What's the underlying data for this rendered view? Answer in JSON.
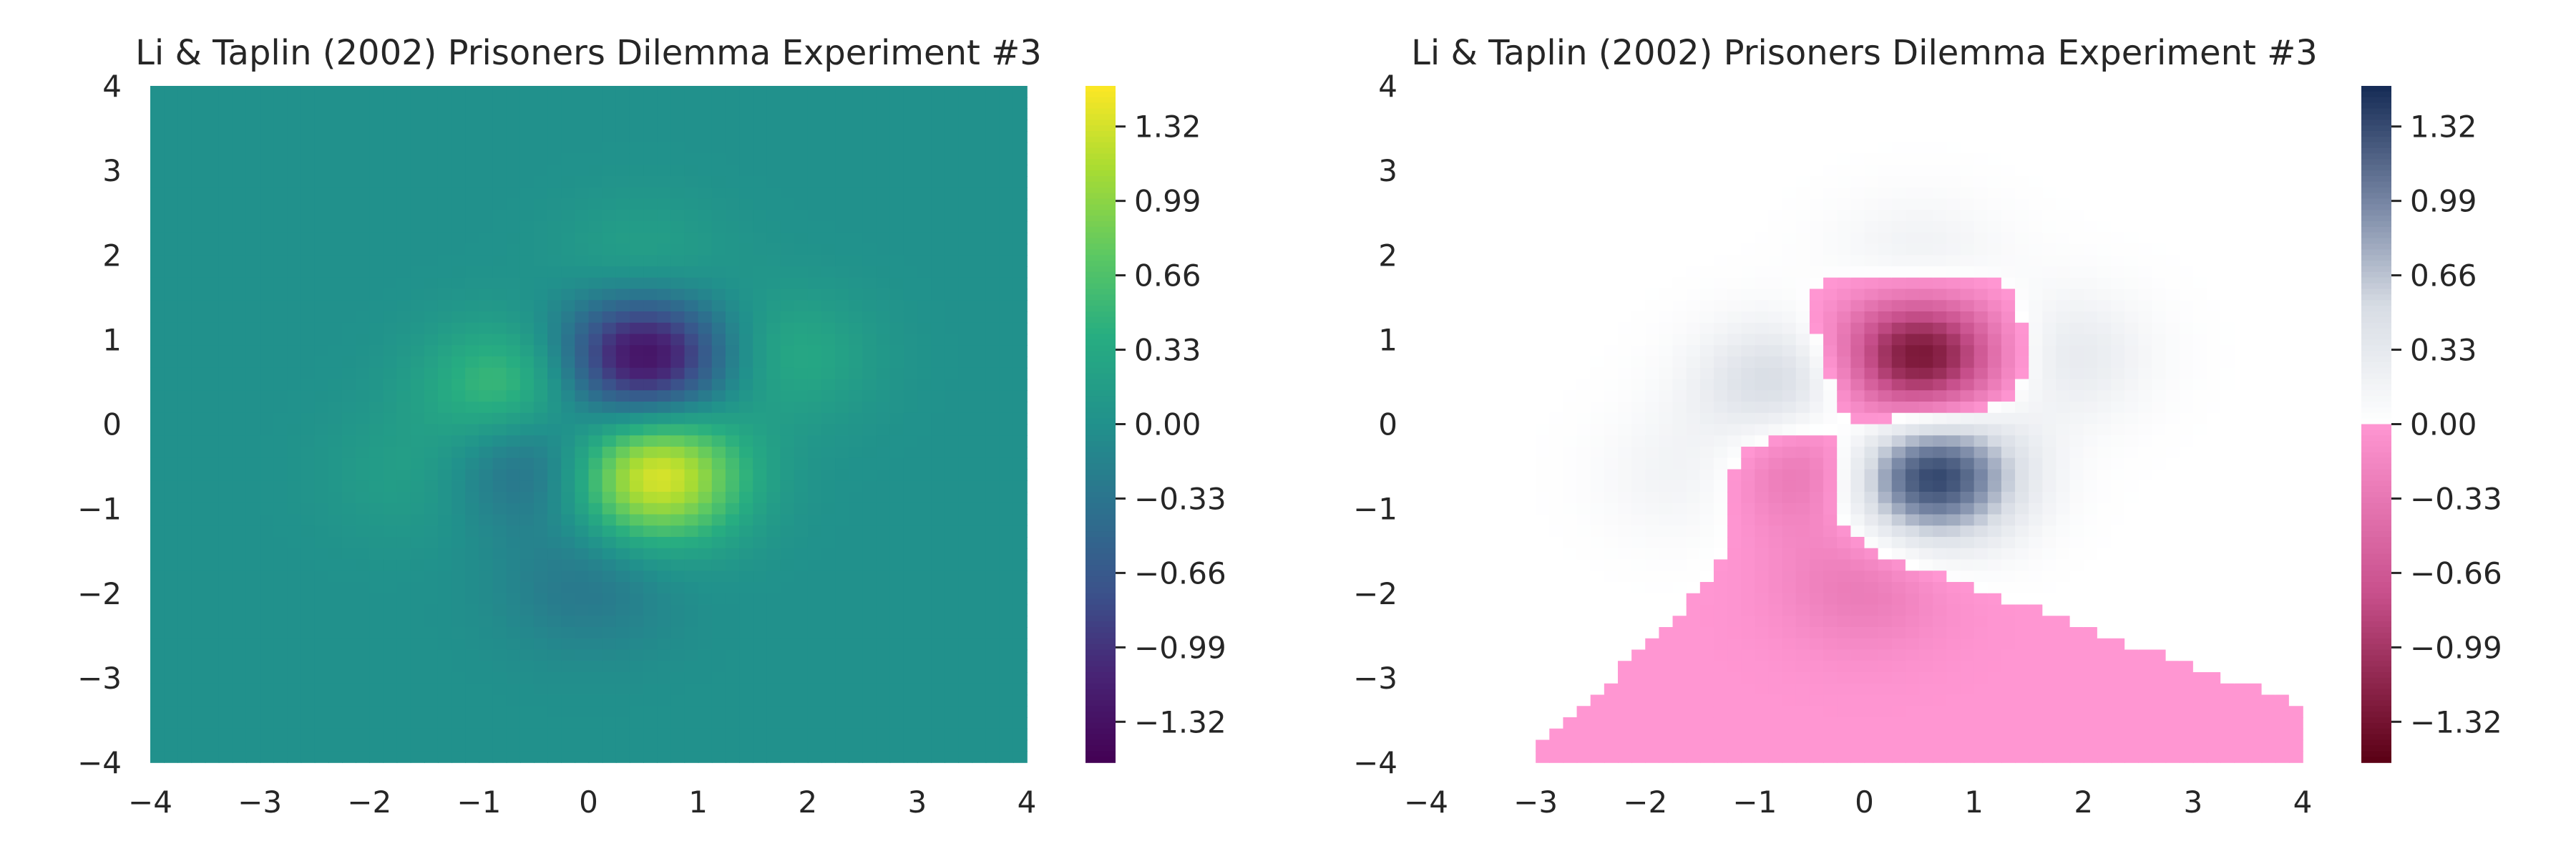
{
  "chart_data": [
    {
      "type": "heatmap",
      "title": "Li & Taplin (2002) Prisoners Dilemma Experiment #3",
      "xlabel": "",
      "ylabel": "",
      "xlim": [
        -4,
        4
      ],
      "ylim": [
        -4,
        4
      ],
      "x_ticks": [
        "−4",
        "−3",
        "−2",
        "−1",
        "0",
        "1",
        "2",
        "3",
        "4"
      ],
      "y_ticks": [
        "−4",
        "−3",
        "−2",
        "−1",
        "0",
        "1",
        "2",
        "3",
        "4"
      ],
      "colormap": "viridis",
      "colorbar": {
        "range": [
          -1.5,
          1.5
        ],
        "ticks": [
          1.32,
          0.99,
          0.66,
          0.33,
          0.0,
          -0.33,
          -0.66,
          -0.99,
          -1.32
        ],
        "tick_labels": [
          "1.32",
          "0.99",
          "0.66",
          "0.33",
          "0.00",
          "−0.33",
          "−0.66",
          "−0.99",
          "−1.32"
        ]
      },
      "features": [
        {
          "x": 0.6,
          "y": -0.6,
          "value": 1.45
        },
        {
          "x": 0.5,
          "y": 0.8,
          "value": -1.45
        },
        {
          "x": -0.7,
          "y": 0.4,
          "value": 0.7
        },
        {
          "x": -0.5,
          "y": -0.4,
          "value": -0.6
        },
        {
          "x": 1.8,
          "y": 0.8,
          "value": 0.35
        },
        {
          "x": 0.5,
          "y": 1.8,
          "value": 0.3
        },
        {
          "x": 0.0,
          "y": -1.9,
          "value": -0.3
        },
        {
          "x": -1.6,
          "y": -0.6,
          "value": 0.2
        }
      ],
      "grid": false
    },
    {
      "type": "heatmap",
      "title": "Li & Taplin (2002) Prisoners Dilemma Experiment #3",
      "xlabel": "",
      "ylabel": "",
      "xlim": [
        -4,
        4
      ],
      "ylim": [
        -4,
        4
      ],
      "x_ticks": [
        "−4",
        "−3",
        "−2",
        "−1",
        "0",
        "1",
        "2",
        "3",
        "4"
      ],
      "y_ticks": [
        "−4",
        "−3",
        "−2",
        "−1",
        "0",
        "1",
        "2",
        "3",
        "4"
      ],
      "colormap": "pink-to-navy diverging",
      "colorbar": {
        "range": [
          -1.5,
          1.5
        ],
        "ticks": [
          1.32,
          0.99,
          0.66,
          0.33,
          0.0,
          -0.33,
          -0.66,
          -0.99,
          -1.32
        ],
        "tick_labels": [
          "1.32",
          "0.99",
          "0.66",
          "0.33",
          "0.00",
          "−0.33",
          "−0.66",
          "−0.99",
          "−1.32"
        ]
      },
      "features": [
        {
          "x": 0.6,
          "y": -0.6,
          "value": 1.45
        },
        {
          "x": 0.5,
          "y": 0.8,
          "value": -1.45
        },
        {
          "x": -0.7,
          "y": 0.4,
          "value": 0.7
        },
        {
          "x": -0.5,
          "y": -0.4,
          "value": -0.6
        },
        {
          "x": 1.8,
          "y": 0.8,
          "value": 0.35
        },
        {
          "x": 0.5,
          "y": 1.8,
          "value": 0.3
        },
        {
          "x": 0.0,
          "y": -1.9,
          "value": -0.3
        },
        {
          "x": -1.6,
          "y": -0.6,
          "value": 0.2
        }
      ],
      "grid": false
    }
  ],
  "colors": {
    "text": "#262626",
    "background": "#ffffff",
    "pink_base": "#ff96d2",
    "navy": "#152b55",
    "maroon": "#5a0014"
  }
}
